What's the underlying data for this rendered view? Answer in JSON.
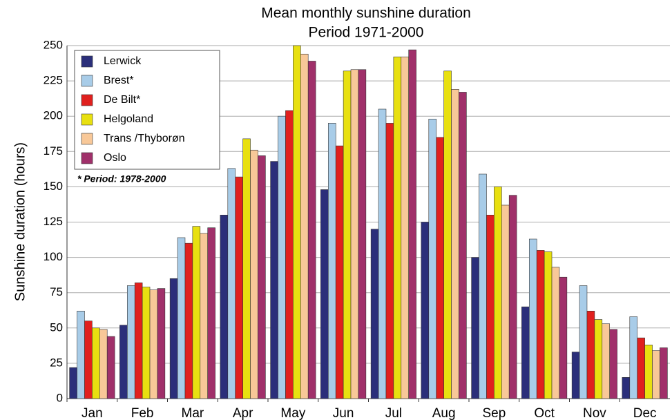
{
  "chart_data": {
    "type": "bar",
    "title": "Mean monthly sunshine duration",
    "subtitle": "Period 1971-2000",
    "y_label": "Sunshine duration (hours)",
    "annotation": "* Period:  1978-2000",
    "categories": [
      "Jan",
      "Feb",
      "Mar",
      "Apr",
      "May",
      "Jun",
      "Jul",
      "Aug",
      "Sep",
      "Oct",
      "Nov",
      "Dec"
    ],
    "series": [
      {
        "name": "Lerwick",
        "color": "#2b2f7a",
        "values": [
          22,
          52,
          85,
          130,
          168,
          148,
          120,
          125,
          100,
          65,
          33,
          15
        ]
      },
      {
        "name": "Brest*",
        "color": "#a8cce8",
        "values": [
          62,
          80,
          114,
          163,
          200,
          195,
          205,
          198,
          159,
          113,
          80,
          58
        ]
      },
      {
        "name": "De Bilt*",
        "color": "#e0201e",
        "values": [
          55,
          82,
          110,
          157,
          204,
          179,
          195,
          185,
          130,
          105,
          62,
          43
        ]
      },
      {
        "name": "Helgoland",
        "color": "#e8e010",
        "values": [
          50,
          79,
          122,
          184,
          250,
          232,
          242,
          232,
          150,
          104,
          56,
          38
        ]
      },
      {
        "name": "Trans /Thyborøn",
        "color": "#f8c898",
        "values": [
          49,
          77,
          117,
          176,
          244,
          233,
          242,
          219,
          137,
          93,
          53,
          34
        ]
      },
      {
        "name": "Oslo",
        "color": "#a0306a",
        "values": [
          44,
          78,
          121,
          172,
          239,
          233,
          247,
          217,
          144,
          86,
          49,
          36
        ]
      }
    ],
    "ylim": [
      0,
      250
    ],
    "yticks": [
      0,
      25,
      50,
      75,
      100,
      125,
      150,
      175,
      200,
      225,
      250
    ],
    "grid": true,
    "legend": "top-left"
  }
}
